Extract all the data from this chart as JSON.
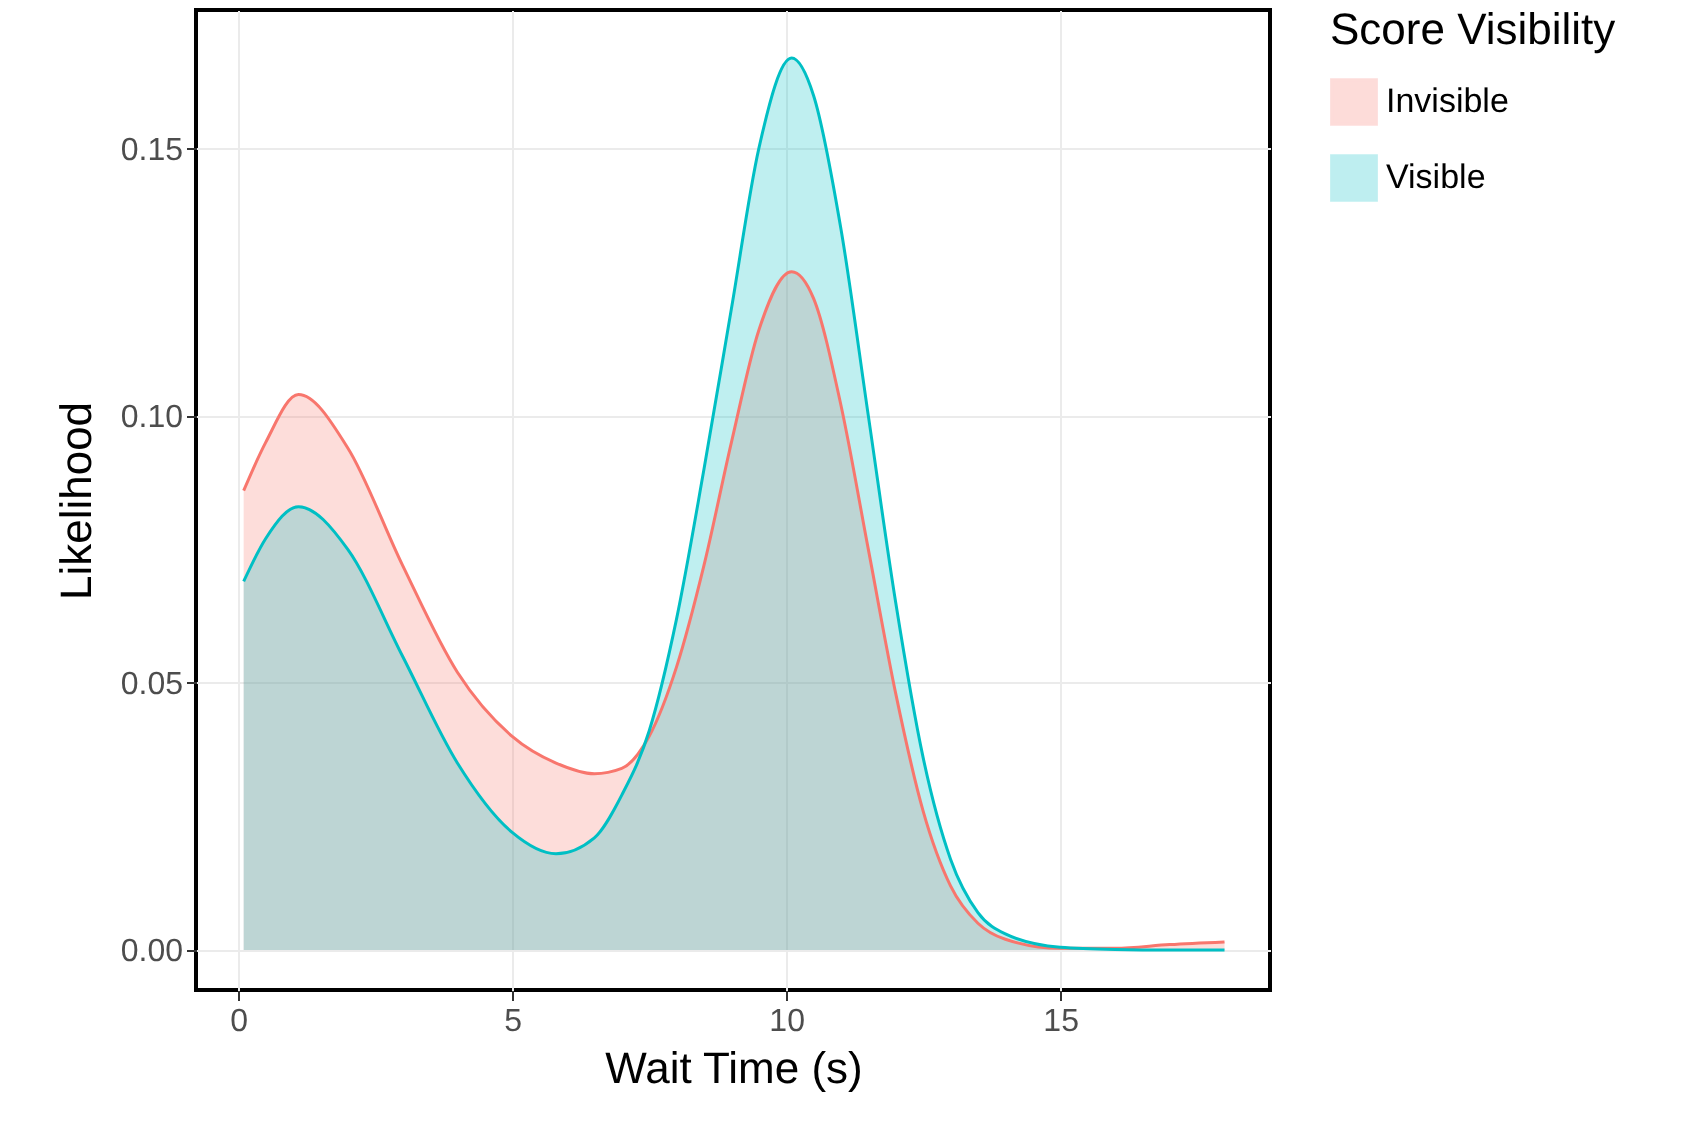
{
  "chart_data": {
    "type": "area",
    "xlabel": "Wait Time (s)",
    "ylabel": "Likelihood",
    "legend_title": "Score Visibility",
    "x": [
      0.1,
      0.5,
      1.1,
      2,
      3,
      4,
      5,
      5.8,
      6.5,
      7,
      7.5,
      8,
      8.5,
      9,
      9.5,
      10.1,
      10.5,
      11,
      11.5,
      12,
      12.5,
      13,
      13.5,
      14,
      15,
      16,
      17,
      18
    ],
    "series": [
      {
        "name": "Invisible",
        "color": "#f8766d",
        "values": [
          0.086,
          0.095,
          0.104,
          0.094,
          0.072,
          0.052,
          0.04,
          0.035,
          0.033,
          0.034,
          0.04,
          0.053,
          0.072,
          0.095,
          0.116,
          0.127,
          0.122,
          0.102,
          0.075,
          0.048,
          0.026,
          0.012,
          0.005,
          0.002,
          0.0003,
          0.0003,
          0.001,
          0.0015
        ]
      },
      {
        "name": "Visible",
        "color": "#00bfc4",
        "values": [
          0.069,
          0.077,
          0.083,
          0.075,
          0.055,
          0.035,
          0.022,
          0.018,
          0.021,
          0.029,
          0.041,
          0.062,
          0.09,
          0.12,
          0.15,
          0.167,
          0.16,
          0.135,
          0.1,
          0.065,
          0.036,
          0.017,
          0.007,
          0.003,
          0.0005,
          0.0001,
          0,
          0
        ]
      }
    ],
    "xlim": [
      -0.77,
      18.83
    ],
    "xticks": [
      0,
      5,
      10,
      15
    ],
    "ylim": [
      -0.0075,
      0.176
    ],
    "yticks": [
      {
        "value": 0,
        "label": "0.00"
      },
      {
        "value": 0.05,
        "label": "0.05"
      },
      {
        "value": 0.1,
        "label": "0.10"
      },
      {
        "value": 0.15,
        "label": "0.15"
      }
    ],
    "grid": true,
    "legend": "right"
  }
}
